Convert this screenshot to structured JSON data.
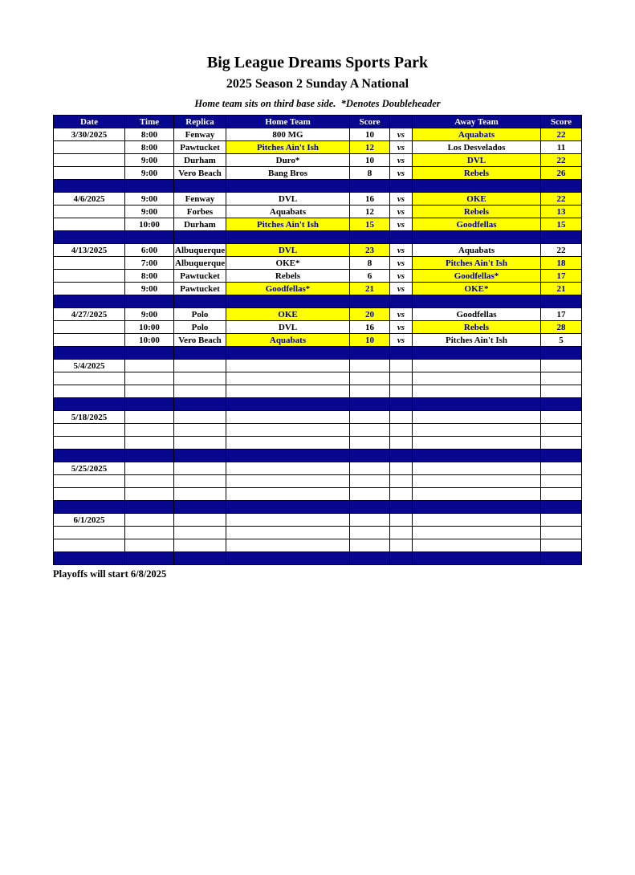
{
  "page": {
    "title": "Big League Dreams Sports Park",
    "subtitle": "2025 Season 2 Sunday A National",
    "note": "Home team sits on third base side.  *Denotes Doubleheader",
    "footer": "Playoffs will start 6/8/2025"
  },
  "colors": {
    "navy": "#07078F",
    "highlight_yellow": "#FFFF00",
    "highlight_text": "#00008B",
    "header_text": "#FFFFFF"
  },
  "table": {
    "headers": [
      "Date",
      "Time",
      "Replica",
      "Home Team",
      "Score",
      "",
      "Away Team",
      "Score"
    ],
    "sections": [
      {
        "date": "3/30/2025",
        "rows": [
          {
            "date": "3/30/2025",
            "time": "8:00",
            "replica": "Fenway",
            "home": "800 MG",
            "home_score": "10",
            "vs": "vs",
            "away": "Aquabats",
            "away_score": "22",
            "home_hl": false,
            "away_hl": true
          },
          {
            "date": "",
            "time": "8:00",
            "replica": "Pawtucket",
            "home": "Pitches Ain't Ish",
            "home_score": "12",
            "vs": "vs",
            "away": "Los Desvelados",
            "away_score": "11",
            "home_hl": true,
            "away_hl": false
          },
          {
            "date": "",
            "time": "9:00",
            "replica": "Durham",
            "home": "Duro*",
            "home_score": "10",
            "vs": "vs",
            "away": "DVL",
            "away_score": "22",
            "home_hl": false,
            "away_hl": true
          },
          {
            "date": "",
            "time": "9:00",
            "replica": "Vero Beach",
            "home": "Bang Bros",
            "home_score": "8",
            "vs": "vs",
            "away": "Rebels",
            "away_score": "26",
            "home_hl": false,
            "away_hl": true
          }
        ]
      },
      {
        "date": "4/6/2025",
        "rows": [
          {
            "date": "4/6/2025",
            "time": "9:00",
            "replica": "Fenway",
            "home": "DVL",
            "home_score": "16",
            "vs": "vs",
            "away": "OKE",
            "away_score": "22",
            "home_hl": false,
            "away_hl": true
          },
          {
            "date": "",
            "time": "9:00",
            "replica": "Forbes",
            "home": "Aquabats",
            "home_score": "12",
            "vs": "vs",
            "away": "Rebels",
            "away_score": "13",
            "home_hl": false,
            "away_hl": true
          },
          {
            "date": "",
            "time": "10:00",
            "replica": "Durham",
            "home": "Pitches Ain't Ish",
            "home_score": "15",
            "vs": "vs",
            "away": "Goodfellas",
            "away_score": "15",
            "home_hl": true,
            "away_hl": true
          }
        ]
      },
      {
        "date": "4/13/2025",
        "rows": [
          {
            "date": "4/13/2025",
            "time": "6:00",
            "replica": "Albuquerque",
            "home": "DVL",
            "home_score": "23",
            "vs": "vs",
            "away": "Aquabats",
            "away_score": "22",
            "home_hl": true,
            "away_hl": false
          },
          {
            "date": "",
            "time": "7:00",
            "replica": "Albuquerque",
            "home": "OKE*",
            "home_score": "8",
            "vs": "vs",
            "away": "Pitches Ain't Ish",
            "away_score": "18",
            "home_hl": false,
            "away_hl": true
          },
          {
            "date": "",
            "time": "8:00",
            "replica": "Pawtucket",
            "home": "Rebels",
            "home_score": "6",
            "vs": "vs",
            "away": "Goodfellas*",
            "away_score": "17",
            "home_hl": false,
            "away_hl": true
          },
          {
            "date": "",
            "time": "9:00",
            "replica": "Pawtucket",
            "home": "Goodfellas*",
            "home_score": "21",
            "vs": "vs",
            "away": "OKE*",
            "away_score": "21",
            "home_hl": true,
            "away_hl": true
          }
        ]
      },
      {
        "date": "4/27/2025",
        "rows": [
          {
            "date": "4/27/2025",
            "time": "9:00",
            "replica": "Polo",
            "home": "OKE",
            "home_score": "20",
            "vs": "vs",
            "away": "Goodfellas",
            "away_score": "17",
            "home_hl": true,
            "away_hl": false
          },
          {
            "date": "",
            "time": "10:00",
            "replica": "Polo",
            "home": "DVL",
            "home_score": "16",
            "vs": "vs",
            "away": "Rebels",
            "away_score": "28",
            "home_hl": false,
            "away_hl": true
          },
          {
            "date": "",
            "time": "10:00",
            "replica": "Vero Beach",
            "home": "Aquabats",
            "home_score": "10",
            "vs": "vs",
            "away": "Pitches Ain't Ish",
            "away_score": "5",
            "home_hl": true,
            "away_hl": false
          }
        ]
      },
      {
        "date": "5/4/2025",
        "rows": [
          {
            "date": "5/4/2025",
            "time": "",
            "replica": "",
            "home": "",
            "home_score": "",
            "vs": "",
            "away": "",
            "away_score": "",
            "home_hl": false,
            "away_hl": false
          },
          {
            "date": "",
            "time": "",
            "replica": "",
            "home": "",
            "home_score": "",
            "vs": "",
            "away": "",
            "away_score": "",
            "home_hl": false,
            "away_hl": false
          },
          {
            "date": "",
            "time": "",
            "replica": "",
            "home": "",
            "home_score": "",
            "vs": "",
            "away": "",
            "away_score": "",
            "home_hl": false,
            "away_hl": false
          }
        ]
      },
      {
        "date": "5/18/2025",
        "rows": [
          {
            "date": "5/18/2025",
            "time": "",
            "replica": "",
            "home": "",
            "home_score": "",
            "vs": "",
            "away": "",
            "away_score": "",
            "home_hl": false,
            "away_hl": false
          },
          {
            "date": "",
            "time": "",
            "replica": "",
            "home": "",
            "home_score": "",
            "vs": "",
            "away": "",
            "away_score": "",
            "home_hl": false,
            "away_hl": false
          },
          {
            "date": "",
            "time": "",
            "replica": "",
            "home": "",
            "home_score": "",
            "vs": "",
            "away": "",
            "away_score": "",
            "home_hl": false,
            "away_hl": false
          }
        ]
      },
      {
        "date": "5/25/2025",
        "rows": [
          {
            "date": "5/25/2025",
            "time": "",
            "replica": "",
            "home": "",
            "home_score": "",
            "vs": "",
            "away": "",
            "away_score": "",
            "home_hl": false,
            "away_hl": false
          },
          {
            "date": "",
            "time": "",
            "replica": "",
            "home": "",
            "home_score": "",
            "vs": "",
            "away": "",
            "away_score": "",
            "home_hl": false,
            "away_hl": false
          },
          {
            "date": "",
            "time": "",
            "replica": "",
            "home": "",
            "home_score": "",
            "vs": "",
            "away": "",
            "away_score": "",
            "home_hl": false,
            "away_hl": false
          }
        ]
      },
      {
        "date": "6/1/2025",
        "rows": [
          {
            "date": "6/1/2025",
            "time": "",
            "replica": "",
            "home": "",
            "home_score": "",
            "vs": "",
            "away": "",
            "away_score": "",
            "home_hl": false,
            "away_hl": false
          },
          {
            "date": "",
            "time": "",
            "replica": "",
            "home": "",
            "home_score": "",
            "vs": "",
            "away": "",
            "away_score": "",
            "home_hl": false,
            "away_hl": false
          },
          {
            "date": "",
            "time": "",
            "replica": "",
            "home": "",
            "home_score": "",
            "vs": "",
            "away": "",
            "away_score": "",
            "home_hl": false,
            "away_hl": false
          }
        ]
      }
    ]
  }
}
